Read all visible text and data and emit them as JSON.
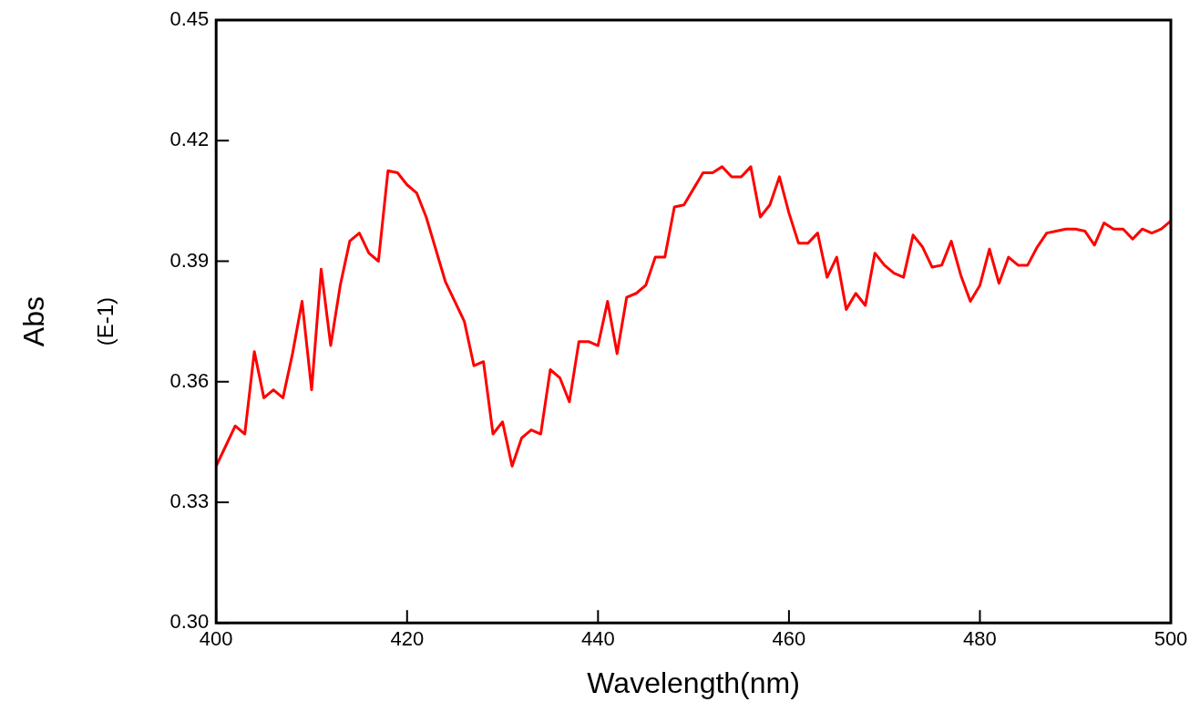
{
  "chart_data": {
    "type": "line",
    "xlabel": "Wavelength(nm)",
    "ylabel": "Abs",
    "annotations": [
      "(E-1)"
    ],
    "x": [
      400,
      401,
      402,
      403,
      404,
      405,
      406,
      407,
      408,
      409,
      410,
      411,
      412,
      413,
      414,
      415,
      416,
      417,
      418,
      419,
      420,
      421,
      422,
      423,
      424,
      425,
      426,
      427,
      428,
      429,
      430,
      431,
      432,
      433,
      434,
      435,
      436,
      437,
      438,
      439,
      440,
      441,
      442,
      443,
      444,
      445,
      446,
      447,
      448,
      449,
      450,
      451,
      452,
      453,
      454,
      455,
      456,
      457,
      458,
      459,
      460,
      461,
      462,
      463,
      464,
      465,
      466,
      467,
      468,
      469,
      470,
      471,
      472,
      473,
      474,
      475,
      476,
      477,
      478,
      479,
      480,
      481,
      482,
      483,
      484,
      485,
      486,
      487,
      488,
      489,
      490,
      491,
      492,
      493,
      494,
      495,
      496,
      497,
      498,
      499,
      500
    ],
    "series": [
      {
        "color": "#ff0000",
        "values": [
          0.339,
          0.344,
          0.349,
          0.347,
          0.3675,
          0.356,
          0.358,
          0.356,
          0.367,
          0.38,
          0.358,
          0.388,
          0.369,
          0.384,
          0.395,
          0.397,
          0.392,
          0.39,
          0.4125,
          0.412,
          0.409,
          0.407,
          0.401,
          0.393,
          0.385,
          0.38,
          0.375,
          0.364,
          0.365,
          0.347,
          0.35,
          0.339,
          0.346,
          0.348,
          0.347,
          0.363,
          0.361,
          0.355,
          0.37,
          0.37,
          0.369,
          0.38,
          0.367,
          0.381,
          0.382,
          0.384,
          0.391,
          0.391,
          0.4035,
          0.404,
          0.408,
          0.412,
          0.412,
          0.4135,
          0.411,
          0.411,
          0.4135,
          0.401,
          0.404,
          0.411,
          0.402,
          0.3945,
          0.3945,
          0.397,
          0.386,
          0.391,
          0.378,
          0.382,
          0.379,
          0.392,
          0.389,
          0.387,
          0.386,
          0.3965,
          0.3935,
          0.3885,
          0.389,
          0.395,
          0.3865,
          0.38,
          0.384,
          0.393,
          0.3845,
          0.391,
          0.389,
          0.389,
          0.3935,
          0.397,
          0.3975,
          0.398,
          0.398,
          0.3975,
          0.394,
          0.3995,
          0.398,
          0.398,
          0.3955,
          0.398,
          0.397,
          0.398,
          0.4
        ]
      }
    ],
    "xlim": [
      400,
      500
    ],
    "xticks": [
      400,
      420,
      440,
      460,
      480,
      500
    ],
    "ylim": [
      0.3,
      0.45
    ],
    "yticks": [
      {
        "value": 0.3,
        "label": "0.30"
      },
      {
        "value": 0.33,
        "label": "0.33"
      },
      {
        "value": 0.36,
        "label": "0.36"
      },
      {
        "value": 0.39,
        "label": "0.39"
      },
      {
        "value": 0.42,
        "label": "0.42"
      },
      {
        "value": 0.45,
        "label": "0.45"
      }
    ],
    "marker": "none",
    "line_style": "solid",
    "legend": false
  }
}
